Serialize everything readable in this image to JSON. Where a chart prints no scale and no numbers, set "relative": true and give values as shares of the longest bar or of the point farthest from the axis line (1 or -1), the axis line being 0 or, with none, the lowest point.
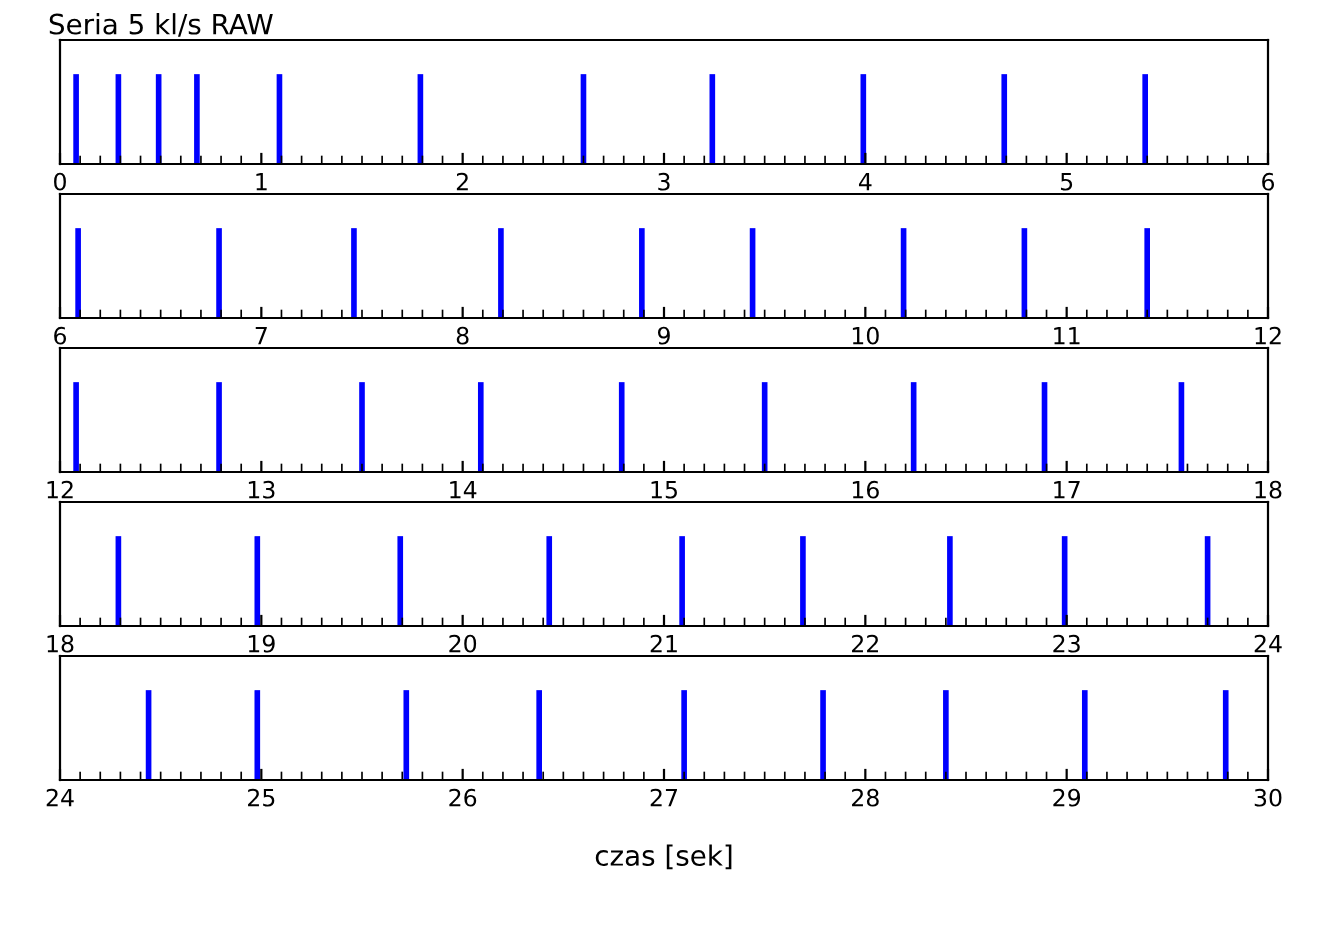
{
  "chart_data": [
    {
      "type": "bar",
      "title": "Seria 5 kl/s RAW",
      "relative": true,
      "color": "#0000ff",
      "x": [
        0.08,
        0.29,
        0.49,
        0.68,
        1.09,
        1.79,
        2.6,
        3.24,
        3.99,
        4.69,
        5.39
      ],
      "values": [
        1,
        1,
        1,
        1,
        1,
        1,
        1,
        1,
        1,
        1,
        1
      ],
      "xlim": [
        0,
        6
      ],
      "xticks": [
        0,
        1,
        2,
        3,
        4,
        5,
        6
      ],
      "grid": false,
      "legend": false
    },
    {
      "type": "bar",
      "relative": true,
      "color": "#0000ff",
      "x": [
        6.09,
        6.79,
        7.46,
        8.19,
        8.89,
        9.44,
        10.19,
        10.79,
        11.4
      ],
      "values": [
        1,
        1,
        1,
        1,
        1,
        1,
        1,
        1,
        1
      ],
      "xlim": [
        6,
        12
      ],
      "xticks": [
        6,
        7,
        8,
        9,
        10,
        11,
        12
      ],
      "grid": false,
      "legend": false
    },
    {
      "type": "bar",
      "relative": true,
      "color": "#0000ff",
      "x": [
        12.08,
        12.79,
        13.5,
        14.09,
        14.79,
        15.5,
        16.24,
        16.89,
        17.57
      ],
      "values": [
        1,
        1,
        1,
        1,
        1,
        1,
        1,
        1,
        1
      ],
      "xlim": [
        12,
        18
      ],
      "xticks": [
        12,
        13,
        14,
        15,
        16,
        17,
        18
      ],
      "grid": false,
      "legend": false
    },
    {
      "type": "bar",
      "relative": true,
      "color": "#0000ff",
      "x": [
        18.29,
        18.98,
        19.69,
        20.43,
        21.09,
        21.69,
        22.42,
        22.99,
        23.7
      ],
      "values": [
        1,
        1,
        1,
        1,
        1,
        1,
        1,
        1,
        1
      ],
      "xlim": [
        18,
        24
      ],
      "xticks": [
        18,
        19,
        20,
        21,
        22,
        23,
        24
      ],
      "grid": false,
      "legend": false
    },
    {
      "type": "bar",
      "relative": true,
      "color": "#0000ff",
      "x": [
        24.44,
        24.98,
        25.72,
        26.38,
        27.1,
        27.79,
        28.4,
        29.09,
        29.79
      ],
      "values": [
        1,
        1,
        1,
        1,
        1,
        1,
        1,
        1,
        1
      ],
      "xlim": [
        24,
        30
      ],
      "xticks": [
        24,
        25,
        26,
        27,
        28,
        29,
        30
      ],
      "xlabel": "czas [sek]",
      "grid": false,
      "legend": false
    }
  ]
}
